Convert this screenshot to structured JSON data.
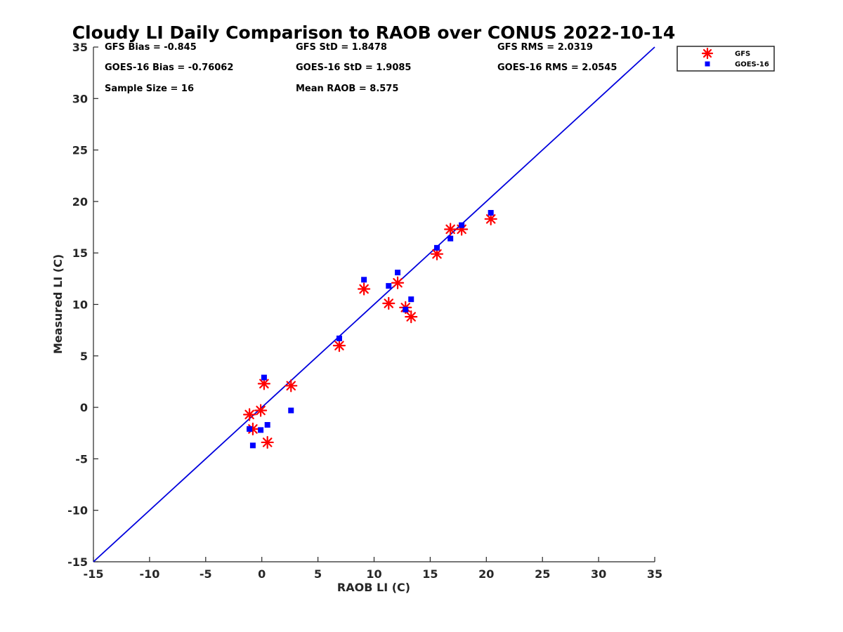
{
  "chart_data": {
    "type": "scatter",
    "title": "Cloudy LI Daily Comparison to RAOB over CONUS 2022-10-14",
    "xlabel": "RAOB LI (C)",
    "ylabel": "Measured LI (C)",
    "xlim": [
      -15,
      35
    ],
    "ylim": [
      -15,
      35
    ],
    "xticks": [
      -15,
      -10,
      -5,
      0,
      5,
      10,
      15,
      20,
      25,
      30,
      35
    ],
    "yticks": [
      -15,
      -10,
      -5,
      0,
      5,
      10,
      15,
      20,
      25,
      30,
      35
    ],
    "grid": false,
    "legend_position": "top-right outside",
    "reference_line": {
      "from": [
        -15,
        -15
      ],
      "to": [
        35,
        35
      ],
      "color": "#0000dd"
    },
    "series": [
      {
        "name": "GFS",
        "marker": "asterisk",
        "color": "#ff0000",
        "points": [
          [
            -1.1,
            -0.7
          ],
          [
            -0.8,
            -2.1
          ],
          [
            -0.1,
            -0.3
          ],
          [
            0.2,
            2.3
          ],
          [
            0.5,
            -3.4
          ],
          [
            2.6,
            2.1
          ],
          [
            6.9,
            6.0
          ],
          [
            9.1,
            11.5
          ],
          [
            11.3,
            10.1
          ],
          [
            12.1,
            12.1
          ],
          [
            12.8,
            9.7
          ],
          [
            13.3,
            8.8
          ],
          [
            15.6,
            14.9
          ],
          [
            16.8,
            17.3
          ],
          [
            17.8,
            17.3
          ],
          [
            20.4,
            18.3
          ]
        ]
      },
      {
        "name": "GOES-16",
        "marker": "square",
        "color": "#0000ff",
        "points": [
          [
            -1.1,
            -2.1
          ],
          [
            -0.8,
            -3.7
          ],
          [
            -0.1,
            -2.2
          ],
          [
            0.2,
            2.9
          ],
          [
            0.5,
            -1.7
          ],
          [
            2.6,
            -0.3
          ],
          [
            6.9,
            6.7
          ],
          [
            9.1,
            12.4
          ],
          [
            11.3,
            11.8
          ],
          [
            12.1,
            13.1
          ],
          [
            12.8,
            9.5
          ],
          [
            13.3,
            10.5
          ],
          [
            15.6,
            15.5
          ],
          [
            16.8,
            16.4
          ],
          [
            17.8,
            17.7
          ],
          [
            20.4,
            18.9
          ]
        ]
      }
    ],
    "annotations": [
      {
        "text": "GFS Bias = -0.845",
        "col": 0,
        "row": 0
      },
      {
        "text": "GFS StD = 1.8478",
        "col": 1,
        "row": 0
      },
      {
        "text": "GFS RMS = 2.0319",
        "col": 2,
        "row": 0
      },
      {
        "text": "GOES-16 Bias = -0.76062",
        "col": 0,
        "row": 1
      },
      {
        "text": "GOES-16 StD = 1.9085",
        "col": 1,
        "row": 1
      },
      {
        "text": "GOES-16 RMS = 2.0545",
        "col": 2,
        "row": 1
      },
      {
        "text": "Sample Size = 16",
        "col": 0,
        "row": 2
      },
      {
        "text": "Mean RAOB = 8.575",
        "col": 1,
        "row": 2
      }
    ]
  }
}
